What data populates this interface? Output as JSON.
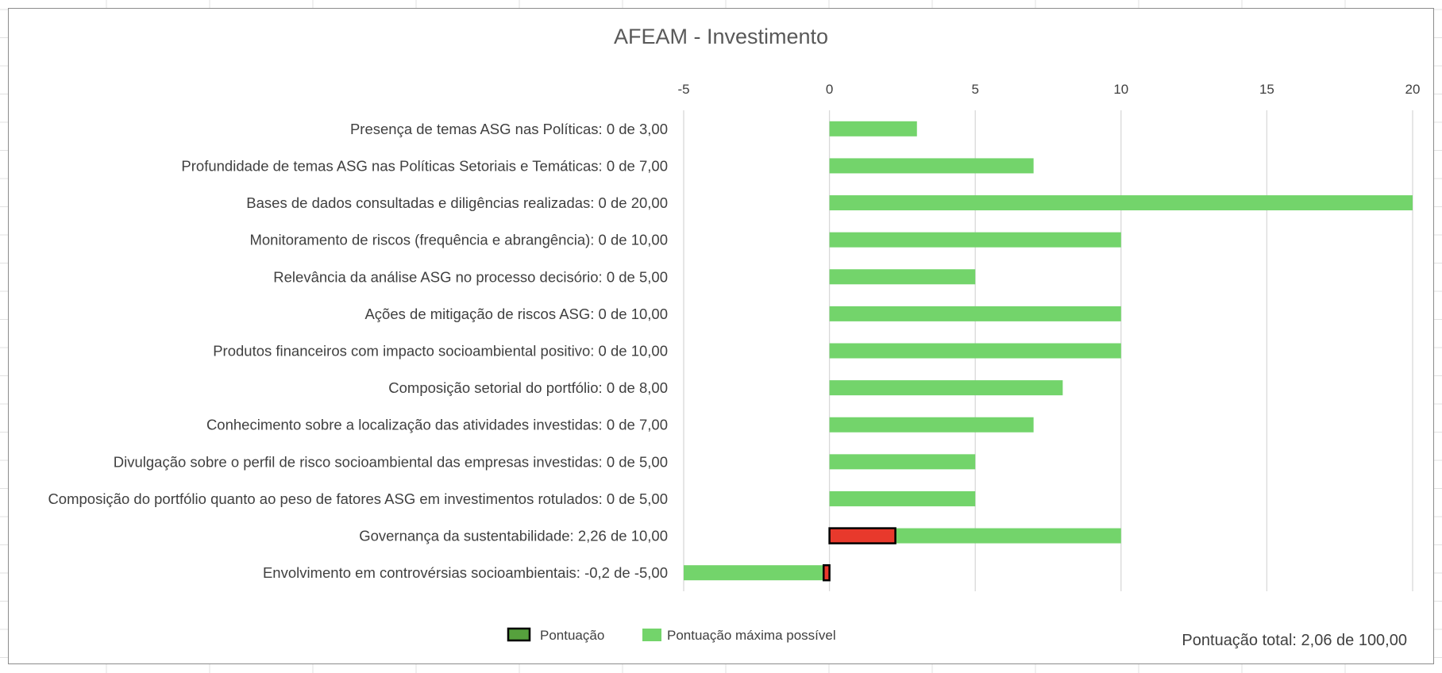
{
  "chart_data": {
    "type": "bar",
    "orientation": "horizontal",
    "title": "AFEAM - Investimento",
    "xlim": [
      -5,
      20
    ],
    "x_ticks": [
      "-5",
      "0",
      "5",
      "10",
      "15",
      "20"
    ],
    "x_tick_values": [
      -5,
      0,
      5,
      10,
      15,
      20
    ],
    "x_axis_position": "top",
    "grid": true,
    "categories": [
      "Presença de temas ASG nas Políticas: 0 de 3,00",
      "Profundidade de temas ASG nas Políticas Setoriais e Temáticas: 0 de 7,00",
      "Bases de dados consultadas e diligências realizadas: 0 de 20,00",
      "Monitoramento de riscos (frequência e abrangência): 0 de 10,00",
      "Relevância da análise ASG no processo decisório: 0 de 5,00",
      "Ações de mitigação de riscos ASG: 0 de 10,00",
      "Produtos financeiros com impacto socioambiental positivo: 0 de 10,00",
      "Composição setorial do portfólio: 0 de 8,00",
      "Conhecimento sobre a localização das atividades investidas: 0 de 7,00",
      "Divulgação sobre o perfil de risco socioambiental das empresas investidas: 0 de 5,00",
      "Composição do portfólio quanto ao peso de fatores ASG em investimentos rotulados: 0 de 5,00",
      "Governança da sustentabilidade: 2,26 de 10,00",
      "Envolvimento em controvérsias socioambientais: -0,2 de -5,00"
    ],
    "series": [
      {
        "name": "Pontuação máxima possível",
        "color": "#73d46b",
        "values": [
          3,
          7,
          20,
          10,
          5,
          10,
          10,
          8,
          7,
          5,
          5,
          10,
          -5
        ]
      },
      {
        "name": "Pontuação",
        "color": "#e8392c",
        "legend_color": "#56a13d",
        "values": [
          0,
          0,
          0,
          0,
          0,
          0,
          0,
          0,
          0,
          0,
          0,
          2.26,
          -0.2
        ]
      }
    ],
    "legend": {
      "placement": "bottom",
      "entries": [
        "Pontuação",
        "Pontuação máxima possível"
      ]
    },
    "annotation": "Pontuação total: 2,06 de 100,00"
  },
  "colors": {
    "title": "#595959",
    "text": "#404040",
    "gridline": "#d9d9d9",
    "score_border": "#000000"
  }
}
